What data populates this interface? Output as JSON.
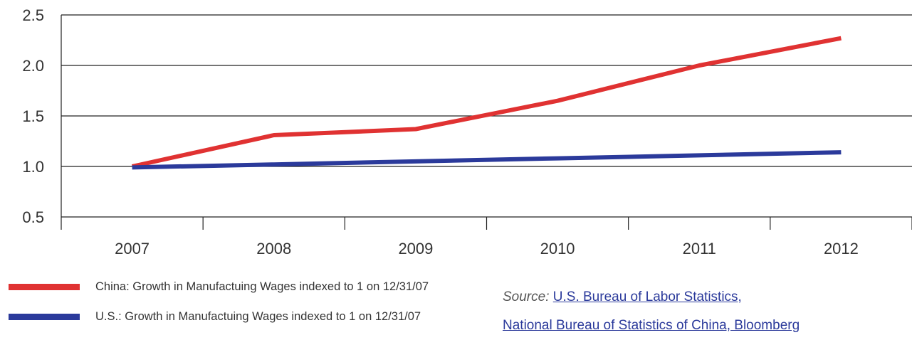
{
  "chart_data": {
    "type": "line",
    "categories": [
      "2007",
      "2008",
      "2009",
      "2010",
      "2011",
      "2012"
    ],
    "y_ticks": [
      "0.5",
      "1.0",
      "1.5",
      "2.0",
      "2.5"
    ],
    "ylim": [
      0.5,
      2.5
    ],
    "grid": true,
    "series": [
      {
        "name": "China: Growth in Manufactuing Wages indexed to 1 on 12/31/07",
        "color": "#e03232",
        "values": [
          1.0,
          1.31,
          1.37,
          1.65,
          2.0,
          2.27
        ]
      },
      {
        "name": "U.S.: Growth in Manufactuing Wages indexed to 1 on 12/31/07",
        "color": "#2b3a9b",
        "values": [
          0.99,
          1.02,
          1.05,
          1.08,
          1.11,
          1.14
        ]
      }
    ]
  },
  "source": {
    "label": "Source:",
    "line1": "U.S. Bureau of Labor Statistics, ",
    "line2": "National Bureau of Statistics of China, Bloomberg"
  }
}
